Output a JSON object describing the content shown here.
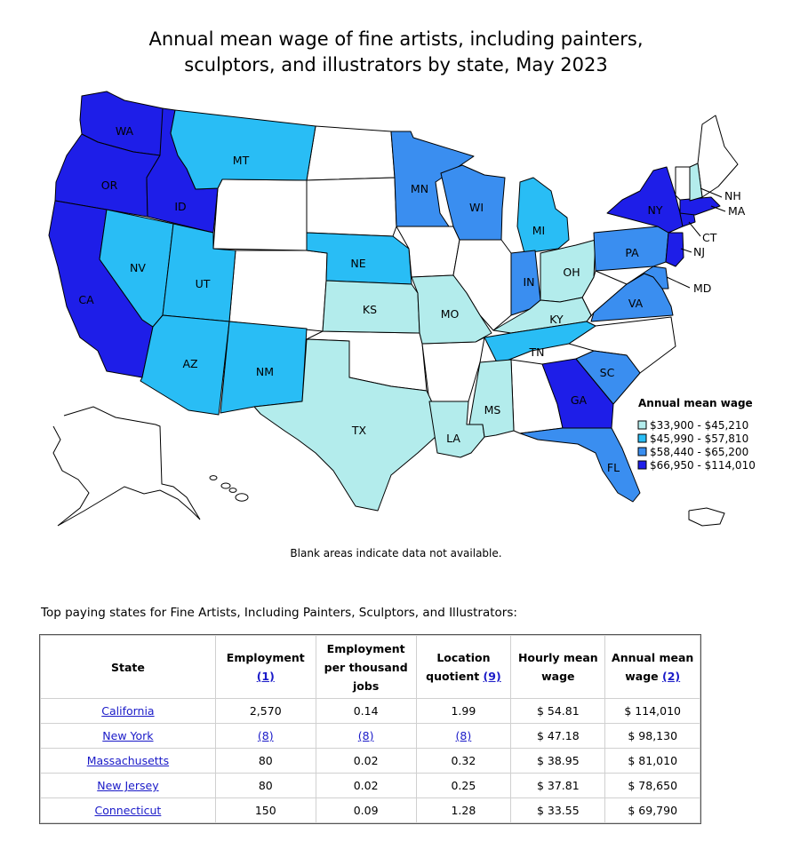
{
  "title": "Annual mean wage of fine artists, including painters, sculptors, and illustrators by state, May 2023",
  "note": "Blank areas indicate data not available.",
  "table_heading": "Top paying states for Fine Artists, Including Painters, Sculptors, and Illustrators:",
  "colors": {
    "bin1": "#b3ecec",
    "bin2": "#29bdf5",
    "bin3": "#3a8ef0",
    "bin4": "#1e1ee8",
    "no_data": "#ffffff",
    "border": "#000000"
  },
  "chart_data": {
    "type": "choropleth",
    "title": "Annual mean wage of fine artists, including painters, sculptors, and illustrators by state, May 2023",
    "legend": {
      "title": "Annual mean wage",
      "bins": [
        {
          "label": "$33,900 - $45,210",
          "color": "#b3ecec"
        },
        {
          "label": "$45,990 - $57,810",
          "color": "#29bdf5"
        },
        {
          "label": "$58,440 - $65,200",
          "color": "#3a8ef0"
        },
        {
          "label": "$66,950 - $114,010",
          "color": "#1e1ee8"
        }
      ]
    },
    "states": [
      {
        "code": "WA",
        "bin": 4
      },
      {
        "code": "OR",
        "bin": 4
      },
      {
        "code": "CA",
        "bin": 4
      },
      {
        "code": "ID",
        "bin": 4
      },
      {
        "code": "NV",
        "bin": 2
      },
      {
        "code": "MT",
        "bin": 2
      },
      {
        "code": "UT",
        "bin": 2
      },
      {
        "code": "AZ",
        "bin": 2
      },
      {
        "code": "NM",
        "bin": 2
      },
      {
        "code": "NE",
        "bin": 2
      },
      {
        "code": "KS",
        "bin": 1
      },
      {
        "code": "TX",
        "bin": 1
      },
      {
        "code": "MN",
        "bin": 3
      },
      {
        "code": "MO",
        "bin": 1
      },
      {
        "code": "LA",
        "bin": 1
      },
      {
        "code": "WI",
        "bin": 3
      },
      {
        "code": "MI",
        "bin": 2
      },
      {
        "code": "IN",
        "bin": 3
      },
      {
        "code": "OH",
        "bin": 1
      },
      {
        "code": "KY",
        "bin": 1
      },
      {
        "code": "TN",
        "bin": 2
      },
      {
        "code": "MS",
        "bin": 1
      },
      {
        "code": "GA",
        "bin": 4
      },
      {
        "code": "SC",
        "bin": 3
      },
      {
        "code": "FL",
        "bin": 3
      },
      {
        "code": "PA",
        "bin": 3
      },
      {
        "code": "VA",
        "bin": 3
      },
      {
        "code": "MD",
        "bin": 3
      },
      {
        "code": "NY",
        "bin": 4
      },
      {
        "code": "NJ",
        "bin": 4
      },
      {
        "code": "CT",
        "bin": 4
      },
      {
        "code": "MA",
        "bin": 4
      },
      {
        "code": "NH",
        "bin": 1
      }
    ]
  },
  "table": {
    "headers": [
      {
        "text": "State",
        "link": ""
      },
      {
        "text": "Employment",
        "link": "(1)"
      },
      {
        "text": "Employment per thousand jobs",
        "link": ""
      },
      {
        "text": "Location quotient",
        "link": "(9)"
      },
      {
        "text": "Hourly mean wage",
        "link": ""
      },
      {
        "text": "Annual mean wage",
        "link": "(2)"
      }
    ],
    "rows": [
      {
        "state": "California",
        "employment": "2,570",
        "per_thousand": "0.14",
        "lq": "1.99",
        "hourly": "$ 54.81",
        "annual": "$ 114,010"
      },
      {
        "state": "New York",
        "employment": "(8)",
        "per_thousand": "(8)",
        "lq": "(8)",
        "hourly": "$ 47.18",
        "annual": "$ 98,130"
      },
      {
        "state": "Massachusetts",
        "employment": "80",
        "per_thousand": "0.02",
        "lq": "0.32",
        "hourly": "$ 38.95",
        "annual": "$ 81,010"
      },
      {
        "state": "New Jersey",
        "employment": "80",
        "per_thousand": "0.02",
        "lq": "0.25",
        "hourly": "$ 37.81",
        "annual": "$ 78,650"
      },
      {
        "state": "Connecticut",
        "employment": "150",
        "per_thousand": "0.09",
        "lq": "1.28",
        "hourly": "$ 33.55",
        "annual": "$ 69,790"
      }
    ]
  }
}
